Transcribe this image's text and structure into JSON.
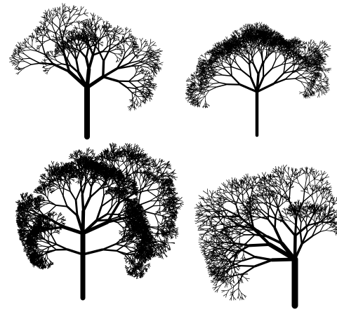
{
  "background_color": "#ffffff",
  "ink_color": "#000000",
  "panels": [
    {
      "name": "rounded-branching-tree",
      "style": "open, spreading round crown with drooping twig tips"
    },
    {
      "name": "dense-dome-tree",
      "style": "dense round dome crown on a single thin trunk"
    },
    {
      "name": "dense-clustered-tree",
      "style": "heavy irregular crown with dense dark foliage masses"
    },
    {
      "name": "wind-swept-tree",
      "style": "crown leaning to the left, stout trunk on the right"
    }
  ]
}
